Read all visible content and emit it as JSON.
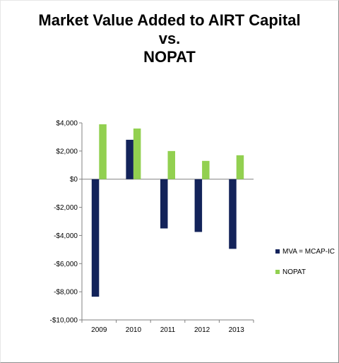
{
  "chart_data": {
    "type": "bar",
    "title_lines": [
      "Market Value Added to AIRT Capital",
      "vs.",
      "NOPAT"
    ],
    "categories": [
      "2009",
      "2010",
      "2011",
      "2012",
      "2013"
    ],
    "series": [
      {
        "name": "MVA = MCAP-IC",
        "color": "#13235a",
        "values": [
          -8350,
          2800,
          -3500,
          -3750,
          -4950
        ]
      },
      {
        "name": "NOPAT",
        "color": "#92d050",
        "values": [
          3900,
          3600,
          2000,
          1300,
          1700
        ]
      }
    ],
    "ylim": [
      -10000,
      4000
    ],
    "yticks": [
      4000,
      2000,
      0,
      -2000,
      -4000,
      -6000,
      -8000,
      -10000
    ],
    "ytick_labels": [
      "$4,000",
      "$2,000",
      "$0",
      "-$2,000",
      "-$4,000",
      "-$6,000",
      "-$8,000",
      "-$10,000"
    ],
    "legend_position": "right",
    "grid": false,
    "xlabel": "",
    "ylabel": ""
  }
}
